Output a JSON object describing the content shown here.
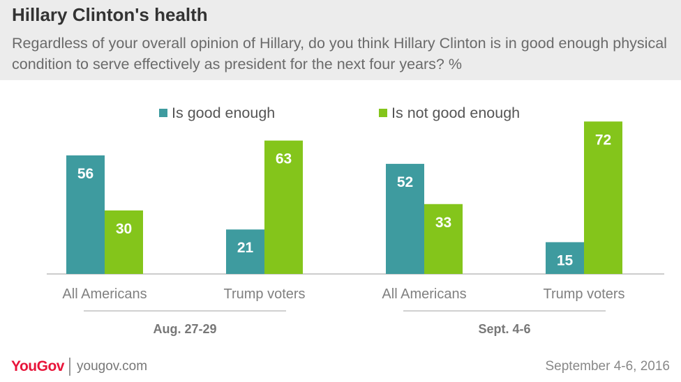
{
  "header": {
    "title": "Hillary Clinton's health",
    "subtitle": "Regardless of your overall opinion of Hillary, do you think Hillary Clinton is in good enough physical condition to serve effectively as president for the next four years? %"
  },
  "legend": [
    {
      "label": "Is good enough",
      "color": "#3e9b9f"
    },
    {
      "label": "Is not good enough",
      "color": "#84c51b"
    }
  ],
  "chart_data": {
    "type": "bar",
    "title": "Hillary Clinton's health",
    "ylim": [
      0,
      80
    ],
    "grid": false,
    "legend_position": "top",
    "groups": [
      {
        "label": "Aug. 27-29",
        "categories": [
          "All Americans",
          "Trump voters"
        ]
      },
      {
        "label": "Sept. 4-6",
        "categories": [
          "All Americans",
          "Trump voters"
        ]
      }
    ],
    "categories": [
      "All Americans",
      "Trump voters",
      "All Americans",
      "Trump voters"
    ],
    "series": [
      {
        "name": "Is good enough",
        "color": "#3e9b9f",
        "values": [
          56,
          21,
          52,
          15
        ]
      },
      {
        "name": "Is not good enough",
        "color": "#84c51b",
        "values": [
          30,
          63,
          33,
          72
        ]
      }
    ]
  },
  "footer": {
    "brand": "YouGov",
    "site": "yougov.com",
    "date": "September 4-6, 2016"
  }
}
